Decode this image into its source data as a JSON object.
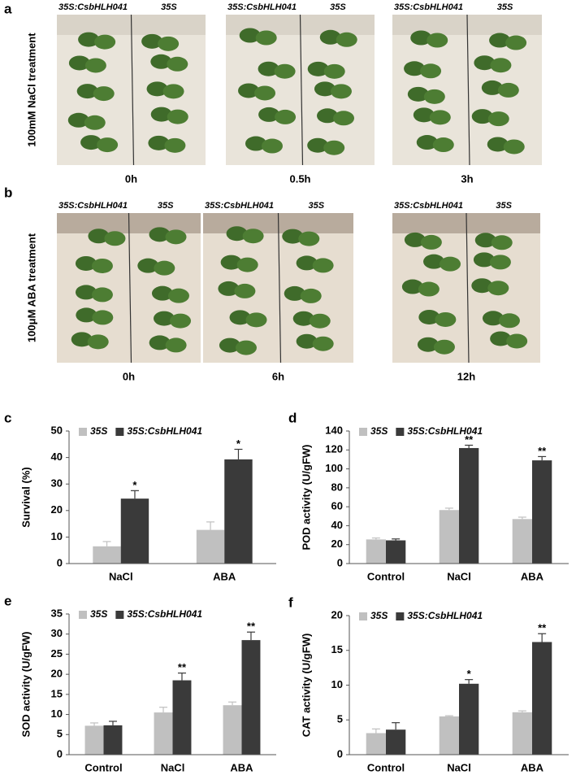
{
  "panels": [
    {
      "label": "a",
      "treatment": "100mM NaCl treatment",
      "images": [
        {
          "genotypes": [
            "35S:CsbHLH041",
            "35S"
          ],
          "time": "0h"
        },
        {
          "genotypes": [
            "35S:CsbHLH041",
            "35S"
          ],
          "time": "0.5h"
        },
        {
          "genotypes": [
            "35S:CsbHLH041",
            "35S"
          ],
          "time": "3h"
        }
      ]
    },
    {
      "label": "b",
      "treatment": "100μM ABA treatment",
      "images": [
        {
          "genotypes": [
            "35S:CsbHLH041",
            "35S"
          ],
          "time": "0h"
        },
        {
          "genotypes": [
            "35S:CsbHLH041",
            "35S"
          ],
          "time": "6h"
        },
        {
          "genotypes": [
            "35S:CsbHLH041",
            "35S"
          ],
          "time": "12h"
        }
      ]
    }
  ],
  "chart_data": [
    {
      "panel_label": "c",
      "type": "bar",
      "ylabel": "Survival (%)",
      "categories": [
        "NaCl",
        "ABA"
      ],
      "ylim": [
        0,
        50
      ],
      "yticks": [
        0,
        10,
        20,
        30,
        40,
        50
      ],
      "series": [
        {
          "name": "35S",
          "color": "#c0c0c0",
          "values": [
            6.5,
            12.7
          ],
          "errors": [
            1.8,
            3.0
          ],
          "significance": [
            null,
            null
          ]
        },
        {
          "name": "35S:CsbHLH041",
          "color": "#3a3a3a",
          "values": [
            24.5,
            39.3
          ],
          "errors": [
            3.0,
            3.8
          ],
          "significance": [
            "*",
            "*"
          ]
        }
      ]
    },
    {
      "panel_label": "d",
      "type": "bar",
      "ylabel": "POD activity (U/gFW)",
      "categories": [
        "Control",
        "NaCl",
        "ABA"
      ],
      "ylim": [
        0,
        140
      ],
      "yticks": [
        0,
        20,
        40,
        60,
        80,
        100,
        120,
        140
      ],
      "series": [
        {
          "name": "35S",
          "color": "#c0c0c0",
          "values": [
            25.5,
            56.5,
            47
          ],
          "errors": [
            1.5,
            2,
            2
          ],
          "significance": [
            null,
            null,
            null
          ]
        },
        {
          "name": "35S:CsbHLH041",
          "color": "#3a3a3a",
          "values": [
            24.5,
            122,
            109
          ],
          "errors": [
            1.5,
            3,
            4
          ],
          "significance": [
            null,
            "**",
            "**"
          ]
        }
      ]
    },
    {
      "panel_label": "e",
      "type": "bar",
      "ylabel": "SOD activity (U/gFW)",
      "categories": [
        "Control",
        "NaCl",
        "ABA"
      ],
      "ylim": [
        0,
        35
      ],
      "yticks": [
        0,
        5,
        10,
        15,
        20,
        25,
        30,
        35
      ],
      "series": [
        {
          "name": "35S",
          "color": "#c0c0c0",
          "values": [
            7.2,
            10.5,
            12.3
          ],
          "errors": [
            0.7,
            1.3,
            0.8
          ],
          "significance": [
            null,
            null,
            null
          ]
        },
        {
          "name": "35S:CsbHLH041",
          "color": "#3a3a3a",
          "values": [
            7.3,
            18.5,
            28.5
          ],
          "errors": [
            1.0,
            1.8,
            2.0
          ],
          "significance": [
            null,
            "**",
            "**"
          ]
        }
      ]
    },
    {
      "panel_label": "f",
      "type": "bar",
      "ylabel": "CAT activity (U/gFW)",
      "categories": [
        "Control",
        "NaCl",
        "ABA"
      ],
      "ylim": [
        0,
        20
      ],
      "yticks": [
        0,
        5,
        10,
        15,
        20
      ],
      "series": [
        {
          "name": "35S",
          "color": "#c0c0c0",
          "values": [
            3.1,
            5.5,
            6.1
          ],
          "errors": [
            0.6,
            0.1,
            0.2
          ],
          "significance": [
            null,
            null,
            null
          ]
        },
        {
          "name": "35S:CsbHLH041",
          "color": "#3a3a3a",
          "values": [
            3.6,
            10.2,
            16.2
          ],
          "errors": [
            1.0,
            0.6,
            1.2
          ],
          "significance": [
            null,
            "*",
            "**"
          ]
        }
      ]
    }
  ]
}
